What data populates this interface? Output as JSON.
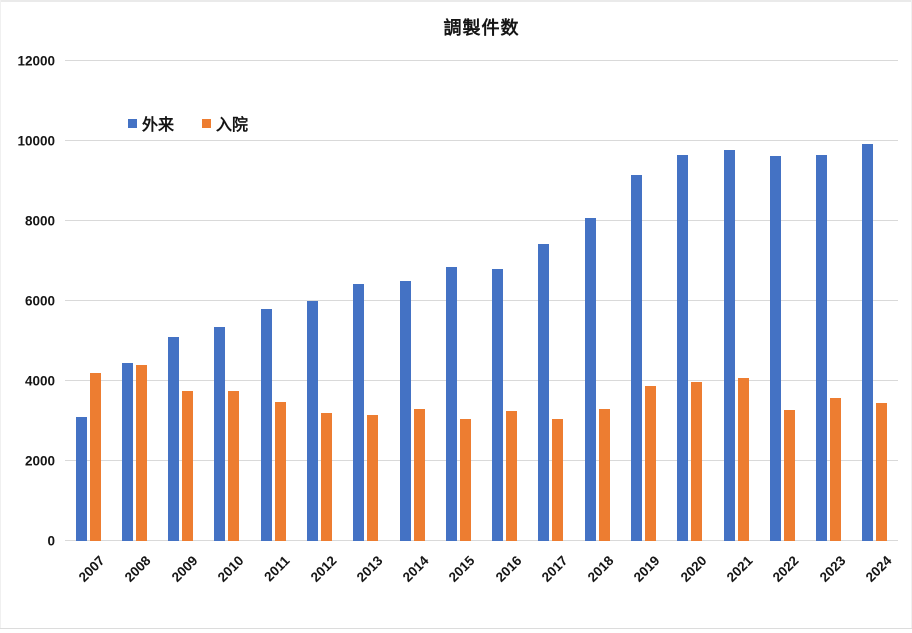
{
  "title": "調製件数",
  "chart_data": {
    "type": "bar",
    "title": "調製件数",
    "xlabel": "",
    "ylabel": "",
    "categories": [
      "2007",
      "2008",
      "2009",
      "2010",
      "2011",
      "2012",
      "2013",
      "2014",
      "2015",
      "2016",
      "2017",
      "2018",
      "2019",
      "2020",
      "2021",
      "2022",
      "2023",
      "2024"
    ],
    "series": [
      {
        "name": "外来",
        "color": "#4472C4",
        "values": [
          3110,
          4450,
          5090,
          5340,
          5790,
          6010,
          6430,
          6510,
          6860,
          6790,
          7420,
          8080,
          9150,
          9640,
          9780,
          9630,
          9640,
          9920
        ]
      },
      {
        "name": "入院",
        "color": "#ED7D31",
        "values": [
          4210,
          4410,
          3750,
          3740,
          3470,
          3190,
          3140,
          3300,
          3060,
          3260,
          3040,
          3310,
          3870,
          3970,
          4080,
          3280,
          3570,
          3450
        ]
      }
    ],
    "ylim": [
      0,
      12000
    ],
    "yticks": [
      0,
      2000,
      4000,
      6000,
      8000,
      10000,
      12000
    ],
    "grid": true,
    "legend_position": "inside-top-left"
  },
  "style": {
    "grid_color": "#d9d9d9",
    "text_color": "#151515",
    "background": "#ffffff"
  }
}
